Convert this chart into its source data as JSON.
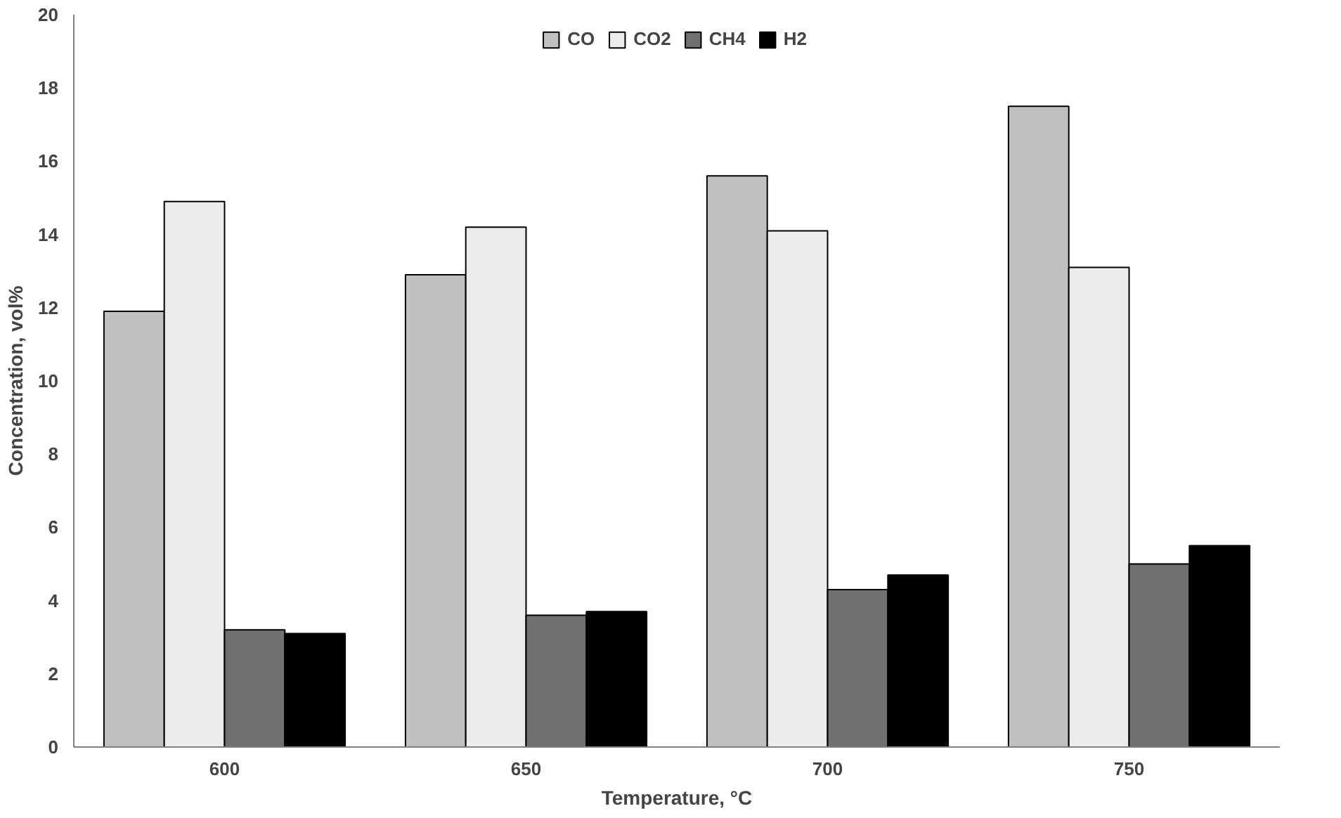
{
  "chart_data": {
    "type": "bar",
    "categories": [
      "600",
      "650",
      "700",
      "750"
    ],
    "xlabel": "Temperature, °C",
    "ylabel": "Concentration, vol%",
    "series": [
      {
        "name": "CO",
        "color": "#c0c0c0",
        "values": [
          11.9,
          12.9,
          15.6,
          17.5
        ]
      },
      {
        "name": "CO2",
        "color": "#ececec",
        "values": [
          14.9,
          14.2,
          14.1,
          13.1
        ]
      },
      {
        "name": "CH4",
        "color": "#707070",
        "values": [
          3.2,
          3.6,
          4.3,
          5.0
        ]
      },
      {
        "name": "H2",
        "color": "#000000",
        "values": [
          3.1,
          3.7,
          4.7,
          5.5
        ]
      }
    ],
    "ylim": [
      0,
      20
    ],
    "yticks": [
      0,
      2,
      4,
      6,
      8,
      10,
      12,
      14,
      16,
      18,
      20
    ],
    "grid": false,
    "legend": "top"
  }
}
